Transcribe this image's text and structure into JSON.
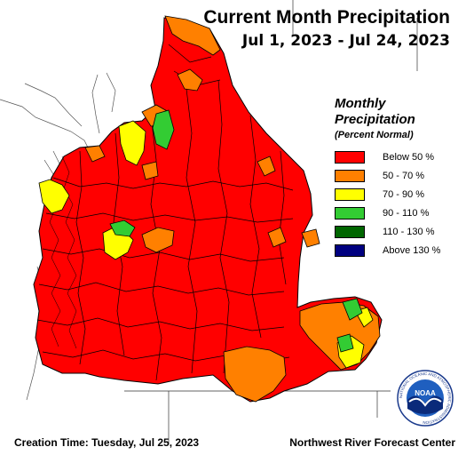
{
  "title": "Current Month Precipitation",
  "subtitle": "Jul 1, 2023 - Jul 24, 2023",
  "legend": {
    "title_line1": "Monthly",
    "title_line2": "Precipitation",
    "subtitle": "(Percent Normal)",
    "items": [
      {
        "label": "Below 50 %",
        "color": "#ff0000"
      },
      {
        "label": "50 - 70 %",
        "color": "#ff8000"
      },
      {
        "label": "70 - 90 %",
        "color": "#ffff00"
      },
      {
        "label": "90 - 110 %",
        "color": "#33cc33"
      },
      {
        "label": "110 - 130 %",
        "color": "#006600"
      },
      {
        "label": "Above 130 %",
        "color": "#000080"
      }
    ]
  },
  "footer": {
    "creation_time": "Creation Time: Tuesday, Jul 25, 2023",
    "center": "Northwest River Forecast Center"
  },
  "logo": {
    "icon": "noaa-logo-icon",
    "text": "NOAA",
    "ring_text": "NATIONAL OCEANIC AND ATMOSPHERIC ADMINISTRATION"
  }
}
